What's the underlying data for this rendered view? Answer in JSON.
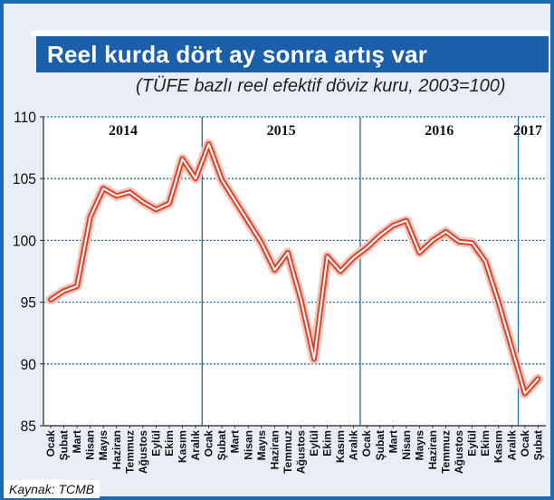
{
  "header": {
    "title": "Reel kurda dört ay sonra artış var",
    "subtitle": "(TÜFE bazlı reel efektif döviz kuru, 2003=100)"
  },
  "footer": {
    "source": "Kaynak: TCMB"
  },
  "colors": {
    "background": "#1d6bb3",
    "title_bg": "#1a5fa8",
    "panel": "#e9eef6",
    "line_outer": "#d9452b",
    "line_inner": "#ffffff",
    "grid": "#1d6bb3"
  },
  "chart_data": {
    "type": "line",
    "title": "Reel kurda dört ay sonra artış var",
    "subtitle": "(TÜFE bazlı reel efektif döviz kuru, 2003=100)",
    "xlabel": "",
    "ylabel": "",
    "ylim": [
      85,
      110
    ],
    "yticks": [
      85,
      90,
      95,
      100,
      105,
      110
    ],
    "grid": true,
    "years": [
      {
        "label": "2014",
        "months": 12
      },
      {
        "label": "2015",
        "months": 12
      },
      {
        "label": "2016",
        "months": 12
      },
      {
        "label": "2017",
        "months": 2
      }
    ],
    "categories": [
      "Ocak",
      "Şubat",
      "Mart",
      "Nisan",
      "Mayıs",
      "Haziran",
      "Temmuz",
      "Ağustos",
      "Eylül",
      "Ekim",
      "Kasım",
      "Aralık",
      "Ocak",
      "Şubat",
      "Mart",
      "Nisan",
      "Mayıs",
      "Haziran",
      "Temmuz",
      "Ağustos",
      "Eylül",
      "Ekim",
      "Kasım",
      "Aralık",
      "Ocak",
      "Şubat",
      "Mart",
      "Nisan",
      "Mayıs",
      "Haziran",
      "Temmuz",
      "Ağustos",
      "Eylül",
      "Ekim",
      "Kasım",
      "Aralık",
      "Ocak",
      "Şubat"
    ],
    "series": [
      {
        "values": [
          95.2,
          95.9,
          96.3,
          101.9,
          104.2,
          103.6,
          103.9,
          103.1,
          102.5,
          103.0,
          106.6,
          105.0,
          107.8,
          104.9,
          103.2,
          101.5,
          99.8,
          97.6,
          99.0,
          95.2,
          90.4,
          98.7,
          97.5,
          98.6,
          99.4,
          100.4,
          101.2,
          101.6,
          99.0,
          100.0,
          100.7,
          99.9,
          99.8,
          98.3,
          95.0,
          91.3,
          87.6,
          88.8
        ]
      }
    ]
  }
}
